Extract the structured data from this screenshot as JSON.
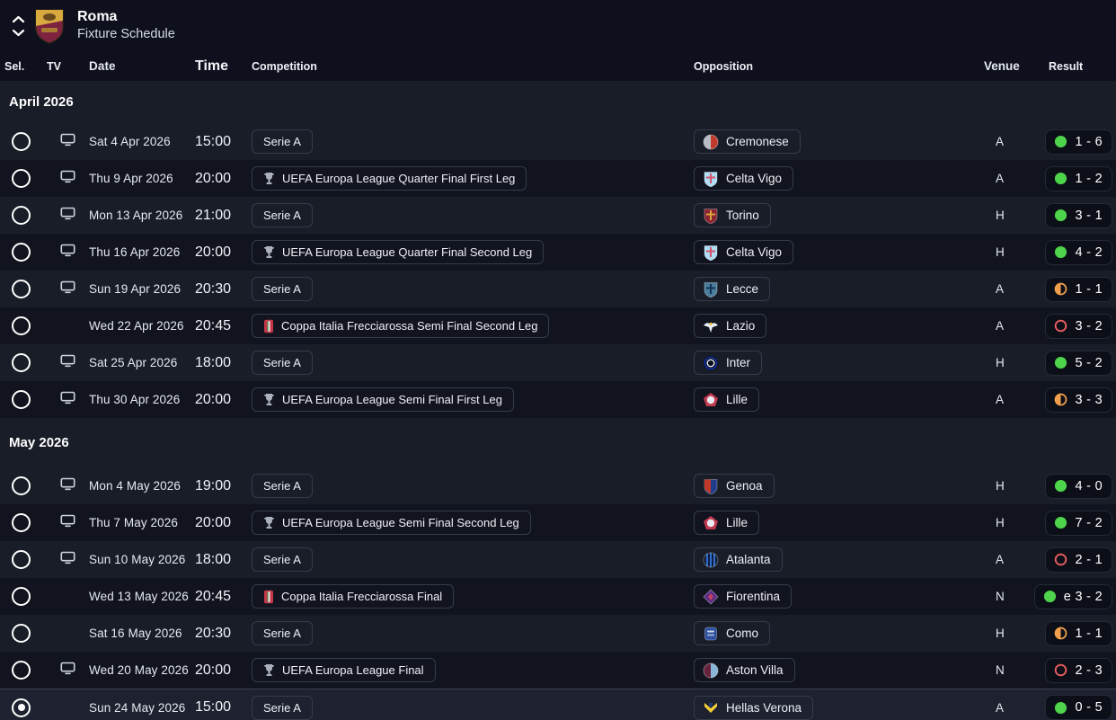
{
  "header": {
    "team": "Roma",
    "subtitle": "Fixture Schedule"
  },
  "columns": {
    "sel": "Sel.",
    "tv": "TV",
    "date": "Date",
    "time": "Time",
    "competition": "Competition",
    "opposition": "Opposition",
    "venue": "Venue",
    "result": "Result"
  },
  "colors": {
    "win": "#4ed44a",
    "draw": "#f0a04c",
    "loss": "#e85f5f",
    "icon_grey": "#aab0bd",
    "coppa_red": "#c5364a"
  },
  "crests": {
    "roma": {
      "shape": "roma",
      "c1": "#d8a93f",
      "c2": "#7d2340"
    },
    "cremonese": {
      "shape": "circle-split",
      "c1": "#b9bcc6",
      "c2": "#c0392b"
    },
    "celta": {
      "shape": "shield",
      "c1": "#aedcf2",
      "c2": "#d4546a"
    },
    "torino": {
      "shape": "shield",
      "c1": "#8a2433",
      "c2": "#d9a43a"
    },
    "lecce": {
      "shape": "shield",
      "c1": "#4a7d9c",
      "c2": "#123157"
    },
    "lazio": {
      "shape": "eagle",
      "c1": "#e8eef7",
      "c2": "#f0c23c"
    },
    "inter": {
      "shape": "rings",
      "c1": "#1430a8",
      "c2": "#e8ecf5"
    },
    "lille": {
      "shape": "pentagon",
      "c1": "#e8ebf2",
      "c2": "#c23a50"
    },
    "genoa": {
      "shape": "vsplit",
      "c1": "#c0392b",
      "c2": "#1f3d8a"
    },
    "atalanta": {
      "shape": "stripes",
      "c1": "#101c38",
      "c2": "#2f6fd0"
    },
    "fiorentina": {
      "shape": "diamond",
      "c1": "#5b2a86",
      "c2": "#c2415f"
    },
    "como": {
      "shape": "badge",
      "c1": "#2b4f9e",
      "c2": "#cdd5e4"
    },
    "astonvilla": {
      "shape": "circle-split",
      "c1": "#68233c",
      "c2": "#86b7d8"
    },
    "verona": {
      "shape": "chevron",
      "c1": "#f3cf3a",
      "c2": "#1f3d8a"
    }
  },
  "sections": [
    {
      "label": "April 2026",
      "rows": [
        {
          "selected": false,
          "tv": true,
          "date": "Sat 4 Apr 2026",
          "time": "15:00",
          "competition": "Serie A",
          "comp_icon": null,
          "opposition": "Cremonese",
          "crest": "cremonese",
          "venue": "A",
          "outcome": "win",
          "score": "1 - 6"
        },
        {
          "selected": false,
          "tv": true,
          "date": "Thu 9 Apr 2026",
          "time": "20:00",
          "competition": "UEFA Europa League Quarter Final First Leg",
          "comp_icon": "europa",
          "opposition": "Celta Vigo",
          "crest": "celta",
          "venue": "A",
          "outcome": "win",
          "score": "1 - 2"
        },
        {
          "selected": false,
          "tv": true,
          "date": "Mon 13 Apr 2026",
          "time": "21:00",
          "competition": "Serie A",
          "comp_icon": null,
          "opposition": "Torino",
          "crest": "torino",
          "venue": "H",
          "outcome": "win",
          "score": "3 - 1"
        },
        {
          "selected": false,
          "tv": true,
          "date": "Thu 16 Apr 2026",
          "time": "20:00",
          "competition": "UEFA Europa League Quarter Final Second Leg",
          "comp_icon": "europa",
          "opposition": "Celta Vigo",
          "crest": "celta",
          "venue": "H",
          "outcome": "win",
          "score": "4 - 2"
        },
        {
          "selected": false,
          "tv": true,
          "date": "Sun 19 Apr 2026",
          "time": "20:30",
          "competition": "Serie A",
          "comp_icon": null,
          "opposition": "Lecce",
          "crest": "lecce",
          "venue": "A",
          "outcome": "draw",
          "score": "1 - 1"
        },
        {
          "selected": false,
          "tv": false,
          "date": "Wed 22 Apr 2026",
          "time": "20:45",
          "competition": "Coppa Italia Frecciarossa Semi Final Second Leg",
          "comp_icon": "coppa",
          "opposition": "Lazio",
          "crest": "lazio",
          "venue": "A",
          "outcome": "loss",
          "score": "3 - 2"
        },
        {
          "selected": false,
          "tv": true,
          "date": "Sat 25 Apr 2026",
          "time": "18:00",
          "competition": "Serie A",
          "comp_icon": null,
          "opposition": "Inter",
          "crest": "inter",
          "venue": "H",
          "outcome": "win",
          "score": "5 - 2"
        },
        {
          "selected": false,
          "tv": true,
          "date": "Thu 30 Apr 2026",
          "time": "20:00",
          "competition": "UEFA Europa League Semi Final First Leg",
          "comp_icon": "europa",
          "opposition": "Lille",
          "crest": "lille",
          "venue": "A",
          "outcome": "draw",
          "score": "3 - 3"
        }
      ]
    },
    {
      "label": "May 2026",
      "rows": [
        {
          "selected": false,
          "tv": true,
          "date": "Mon 4 May 2026",
          "time": "19:00",
          "competition": "Serie A",
          "comp_icon": null,
          "opposition": "Genoa",
          "crest": "genoa",
          "venue": "H",
          "outcome": "win",
          "score": "4 - 0"
        },
        {
          "selected": false,
          "tv": true,
          "date": "Thu 7 May 2026",
          "time": "20:00",
          "competition": "UEFA Europa League Semi Final Second Leg",
          "comp_icon": "europa",
          "opposition": "Lille",
          "crest": "lille",
          "venue": "H",
          "outcome": "win",
          "score": "7 - 2"
        },
        {
          "selected": false,
          "tv": true,
          "date": "Sun 10 May 2026",
          "time": "18:00",
          "competition": "Serie A",
          "comp_icon": null,
          "opposition": "Atalanta",
          "crest": "atalanta",
          "venue": "A",
          "outcome": "loss",
          "score": "2 - 1"
        },
        {
          "selected": false,
          "tv": false,
          "date": "Wed 13 May 2026",
          "time": "20:45",
          "competition": "Coppa Italia Frecciarossa Final",
          "comp_icon": "coppa",
          "opposition": "Fiorentina",
          "crest": "fiorentina",
          "venue": "N",
          "outcome": "win",
          "score": "e 3 - 2"
        },
        {
          "selected": false,
          "tv": false,
          "date": "Sat 16 May 2026",
          "time": "20:30",
          "competition": "Serie A",
          "comp_icon": null,
          "opposition": "Como",
          "crest": "como",
          "venue": "H",
          "outcome": "draw",
          "score": "1 - 1"
        },
        {
          "selected": false,
          "tv": true,
          "date": "Wed 20 May 2026",
          "time": "20:00",
          "competition": "UEFA Europa League Final",
          "comp_icon": "europa",
          "opposition": "Aston Villa",
          "crest": "astonvilla",
          "venue": "N",
          "outcome": "loss",
          "score": "2 - 3"
        },
        {
          "selected": true,
          "tv": false,
          "date": "Sun 24 May 2026",
          "time": "15:00",
          "competition": "Serie A",
          "comp_icon": null,
          "opposition": "Hellas Verona",
          "crest": "verona",
          "venue": "A",
          "outcome": "win",
          "score": "0 - 5"
        }
      ]
    }
  ]
}
